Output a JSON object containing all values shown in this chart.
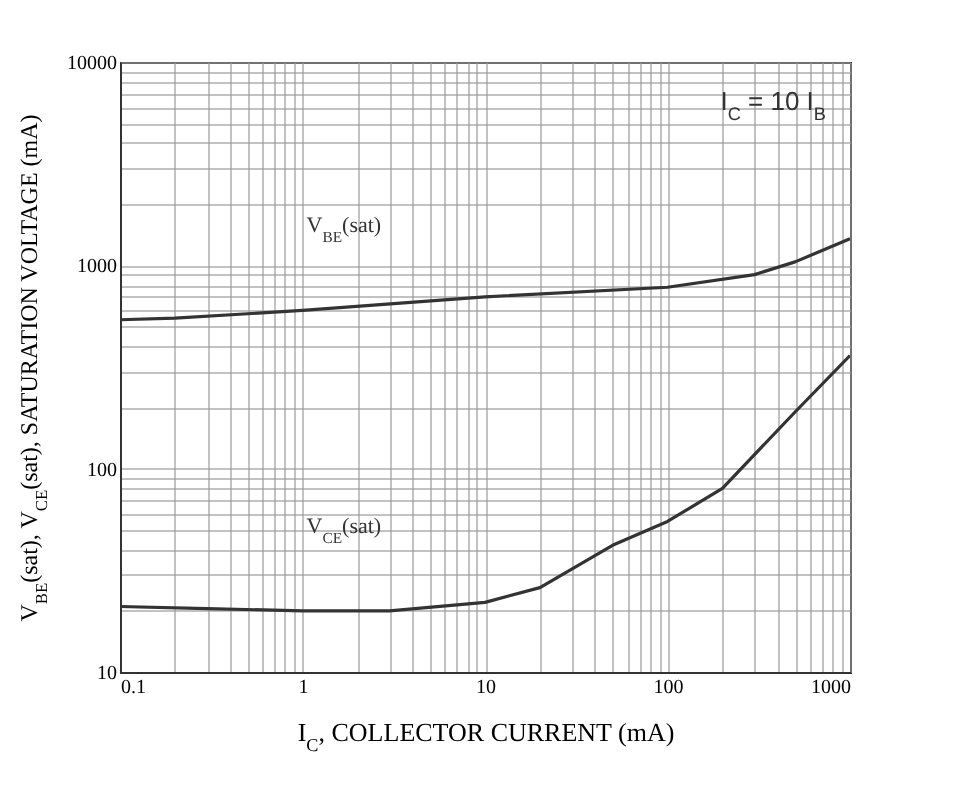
{
  "chart_data": {
    "type": "line",
    "xlabel": "I$_{C}$, COLLECTOR CURRENT (mA)",
    "ylabel": "V$_{BE}$(sat), V$_{CE}$(sat), SATURATION VOLTAGE (mA)",
    "log": "xy",
    "grid": true,
    "line_style": "solid",
    "marker": "none",
    "xlim": [
      0.1,
      1000
    ],
    "ylim": [
      10,
      10000
    ],
    "xticks": [
      0.1,
      {
        "value": 0.2,
        "label": null
      },
      {
        "value": 0.3,
        "label": null
      },
      {
        "value": 0.4,
        "label": null
      },
      {
        "value": 0.5,
        "label": null
      },
      {
        "value": 0.6,
        "label": null
      },
      {
        "value": 0.7,
        "label": null
      },
      {
        "value": 0.8,
        "label": null
      },
      {
        "value": 0.9,
        "label": null
      },
      1,
      {
        "value": 2,
        "label": null
      },
      {
        "value": 3,
        "label": null
      },
      {
        "value": 4,
        "label": null
      },
      {
        "value": 5,
        "label": null
      },
      {
        "value": 6,
        "label": null
      },
      {
        "value": 7,
        "label": null
      },
      {
        "value": 8,
        "label": null
      },
      {
        "value": 9,
        "label": null
      },
      10,
      {
        "value": 20,
        "label": null
      },
      {
        "value": 30,
        "label": null
      },
      {
        "value": 40,
        "label": null
      },
      {
        "value": 50,
        "label": null
      },
      {
        "value": 60,
        "label": null
      },
      {
        "value": 70,
        "label": null
      },
      {
        "value": 80,
        "label": null
      },
      {
        "value": 90,
        "label": null
      },
      100,
      {
        "value": 200,
        "label": null
      },
      {
        "value": 300,
        "label": null
      },
      {
        "value": 400,
        "label": null
      },
      {
        "value": 500,
        "label": null
      },
      {
        "value": 600,
        "label": null
      },
      {
        "value": 700,
        "label": null
      },
      {
        "value": 800,
        "label": null
      },
      {
        "value": 900,
        "label": null
      },
      1000
    ],
    "yticks": [
      10,
      {
        "value": 20,
        "label": null
      },
      {
        "value": 30,
        "label": null
      },
      {
        "value": 40,
        "label": null
      },
      {
        "value": 50,
        "label": null
      },
      {
        "value": 60,
        "label": null
      },
      {
        "value": 70,
        "label": null
      },
      {
        "value": 80,
        "label": null
      },
      {
        "value": 90,
        "label": null
      },
      100,
      {
        "value": 200,
        "label": null
      },
      {
        "value": 300,
        "label": null
      },
      {
        "value": 400,
        "label": null
      },
      {
        "value": 500,
        "label": null
      },
      {
        "value": 600,
        "label": null
      },
      {
        "value": 700,
        "label": null
      },
      {
        "value": 800,
        "label": null
      },
      {
        "value": 900,
        "label": null
      },
      1000,
      {
        "value": 2000,
        "label": null
      },
      {
        "value": 3000,
        "label": null
      },
      {
        "value": 4000,
        "label": null
      },
      {
        "value": 5000,
        "label": null
      },
      {
        "value": 6000,
        "label": null
      },
      {
        "value": 7000,
        "label": null
      },
      {
        "value": 8000,
        "label": null
      },
      {
        "value": 9000,
        "label": null
      },
      10000
    ],
    "series": [
      {
        "name": "V$_{BE}$(sat)",
        "color": "#333333",
        "x": [
          0.1,
          0.2,
          1,
          10,
          100,
          300,
          500,
          1000
        ],
        "values": [
          540,
          550,
          600,
          700,
          780,
          900,
          1040,
          1350
        ]
      },
      {
        "name": "V$_{CE}$(sat)",
        "color": "#333333",
        "x": [
          0.1,
          0.3,
          1,
          3,
          10,
          20,
          50,
          100,
          200,
          500,
          1000
        ],
        "values": [
          21,
          20.5,
          20,
          20,
          22,
          26,
          42,
          55,
          80,
          190,
          360
        ]
      }
    ],
    "annotations": [
      "I$_{C}$ = 10 I$_{B}$"
    ]
  }
}
